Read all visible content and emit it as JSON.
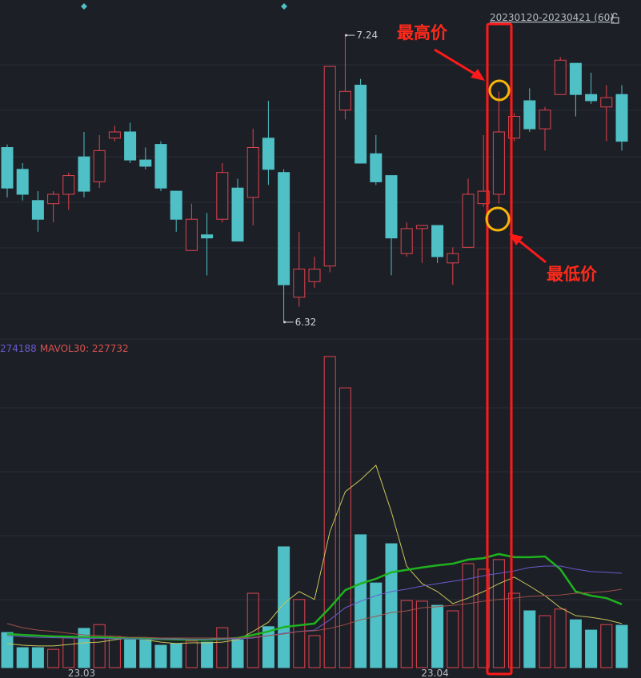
{
  "chart_data": {
    "type": "candlestick",
    "range_label": "20230120-20230421 (60)",
    "categories": [
      null,
      null,
      null,
      null,
      null,
      "23.03",
      null,
      null,
      null,
      null,
      null,
      null,
      null,
      null,
      null,
      null,
      null,
      null,
      null,
      null,
      null,
      null,
      null,
      null,
      null,
      null,
      null,
      null,
      "23.04",
      null,
      null,
      null,
      null,
      null,
      null,
      null,
      null,
      null,
      null,
      null,
      null
    ],
    "open": [
      6.88,
      6.81,
      6.71,
      6.7,
      6.73,
      6.85,
      6.77,
      6.91,
      6.93,
      6.84,
      6.89,
      6.74,
      6.55,
      6.6,
      6.65,
      6.75,
      6.72,
      6.91,
      6.8,
      6.4,
      6.45,
      6.5,
      7.0,
      7.08,
      6.86,
      6.79,
      6.54,
      6.62,
      6.63,
      6.51,
      6.56,
      6.7,
      6.73,
      6.91,
      7.03,
      6.94,
      7.05,
      7.15,
      7.05,
      7.01,
      7.05
    ],
    "high": [
      6.89,
      6.83,
      6.74,
      6.74,
      6.8,
      6.93,
      6.92,
      6.95,
      6.96,
      6.88,
      6.9,
      6.74,
      6.7,
      6.67,
      6.83,
      6.78,
      6.94,
      7.03,
      6.81,
      6.61,
      6.53,
      7.14,
      7.24,
      7.1,
      6.92,
      6.79,
      6.64,
      6.63,
      6.63,
      6.56,
      6.78,
      6.92,
      7.06,
      6.99,
      7.07,
      7.01,
      7.17,
      7.15,
      7.12,
      7.08,
      7.08
    ],
    "low": [
      6.72,
      6.71,
      6.61,
      6.64,
      6.68,
      6.72,
      6.75,
      6.9,
      6.83,
      6.81,
      6.74,
      6.61,
      6.55,
      6.47,
      6.64,
      6.58,
      6.63,
      6.76,
      6.32,
      6.37,
      6.43,
      6.48,
      6.97,
      6.83,
      6.76,
      6.47,
      6.53,
      6.51,
      6.51,
      6.44,
      6.56,
      6.69,
      6.7,
      6.9,
      6.93,
      6.87,
      7.05,
      6.98,
      7.02,
      6.9,
      6.87
    ],
    "close": [
      6.75,
      6.73,
      6.65,
      6.73,
      6.79,
      6.74,
      6.87,
      6.93,
      6.84,
      6.82,
      6.75,
      6.65,
      6.65,
      6.59,
      6.8,
      6.58,
      6.88,
      6.81,
      6.44,
      6.49,
      6.49,
      7.14,
      7.06,
      6.83,
      6.77,
      6.59,
      6.62,
      6.63,
      6.53,
      6.54,
      6.73,
      6.74,
      6.93,
      6.98,
      6.94,
      7.0,
      7.16,
      7.05,
      7.03,
      7.04,
      6.9
    ],
    "ylim": [
      6.266,
      7.353
    ],
    "up_color": "#e0434f",
    "down_color": "#4fc0c5",
    "volume": {
      "values": [
        102000,
        58000,
        58000,
        53000,
        88000,
        114000,
        125000,
        91000,
        81000,
        81000,
        65000,
        70000,
        77000,
        74000,
        116000,
        81000,
        216000,
        119000,
        351000,
        198000,
        93000,
        904000,
        813000,
        386000,
        246000,
        360000,
        195000,
        193000,
        181000,
        165000,
        302000,
        286000,
        314000,
        216000,
        165000,
        151000,
        170000,
        139000,
        109000,
        125000,
        123000
      ],
      "ylim": [
        0,
        941000
      ],
      "series": [
        {
          "color": "#c8c45a",
          "values": [
            70000,
            65000,
            63000,
            63000,
            67000,
            72000,
            74000,
            81000,
            86000,
            81000,
            74000,
            70000,
            72000,
            72000,
            74000,
            81000,
            105000,
            132000,
            186000,
            221000,
            198000,
            395000,
            511000,
            546000,
            588000,
            453000,
            295000,
            244000,
            221000,
            186000,
            202000,
            221000,
            244000,
            263000,
            237000,
            209000,
            174000,
            151000,
            146000,
            139000,
            128000
          ]
        },
        {
          "color": "#1fb21f",
          "values": [
            98000,
            95000,
            93000,
            91000,
            90000,
            88000,
            88000,
            86000,
            85000,
            84000,
            83000,
            82000,
            81000,
            81000,
            83000,
            86000,
            95000,
            105000,
            118000,
            123000,
            128000,
            174000,
            225000,
            244000,
            258000,
            277000,
            284000,
            291000,
            297000,
            302000,
            314000,
            318000,
            330000,
            321000,
            321000,
            323000,
            286000,
            221000,
            209000,
            202000,
            184000
          ]
        },
        {
          "color": "#6a5acd",
          "values": [
            93000,
            90000,
            88000,
            87000,
            86000,
            85000,
            85000,
            84000,
            84000,
            83000,
            83000,
            83000,
            82000,
            82000,
            83000,
            84000,
            86000,
            93000,
            100000,
            105000,
            109000,
            139000,
            174000,
            193000,
            209000,
            221000,
            228000,
            237000,
            244000,
            251000,
            258000,
            267000,
            274000,
            281000,
            291000,
            295000,
            295000,
            286000,
            279000,
            277000,
            274188
          ]
        },
        {
          "color": "#a0504a",
          "values": [
            128000,
            116000,
            109000,
            105000,
            100000,
            95000,
            93000,
            91000,
            88000,
            88000,
            86000,
            86000,
            86000,
            86000,
            86000,
            86000,
            88000,
            93000,
            98000,
            105000,
            107000,
            114000,
            125000,
            139000,
            149000,
            160000,
            165000,
            174000,
            177000,
            181000,
            186000,
            193000,
            198000,
            202000,
            207000,
            209000,
            211000,
            216000,
            218000,
            221000,
            227732
          ]
        }
      ]
    },
    "indicator_labels": [
      {
        "text": "274188",
        "color": "#6a5acd"
      },
      {
        "text": "MAVOL30: 227732",
        "color": "#d9534f"
      }
    ],
    "annotations": [
      "最高价",
      "最低价"
    ]
  }
}
